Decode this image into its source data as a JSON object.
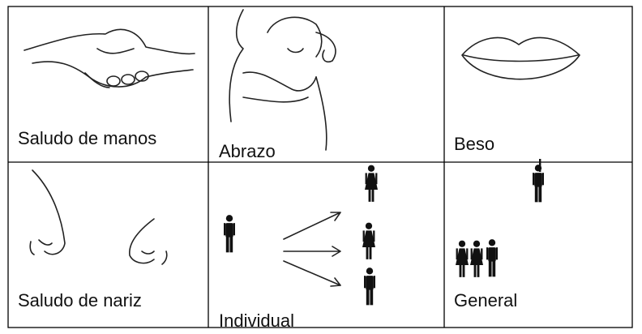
{
  "table": {
    "rows": [
      [
        "Saludo de manos",
        "Abrazo",
        "Beso"
      ],
      [
        "Saludo de nariz",
        "Individual",
        "General"
      ]
    ]
  }
}
